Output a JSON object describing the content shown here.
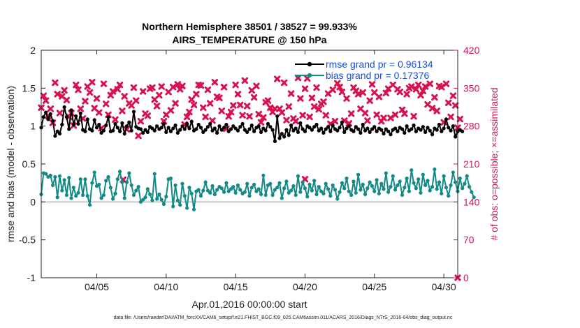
{
  "chart_data": {
    "type": "line",
    "title": "Northern Hemisphere 38501 / 38527 = 99.933%",
    "subtitle": "AIRS_TEMPERATURE @ 150 hPa",
    "xlabel": "Apr.01,2016 00:00:00 start",
    "ylabel": "rmse and bias (model - observation)",
    "y2label": "# of obs: o=possible; ×=assimilated",
    "footer": "data file: /Users/raeder/DAI/ATM_forcXX/CAM6_setup/f.e21.FHIST_BGC.f09_025.CAM6assim.011/ACARS_2016/Diags_NTrS_2016-04/obs_diag_output.nc",
    "xlim": [
      1,
      31
    ],
    "ylim": [
      -1,
      2
    ],
    "y2lim": [
      0,
      420
    ],
    "x_ticks": [
      5,
      10,
      15,
      20,
      25,
      30
    ],
    "x_tick_labels": [
      "04/05",
      "04/10",
      "04/15",
      "04/20",
      "04/25",
      "04/30"
    ],
    "y_tick_labels": [
      "2",
      "1.5",
      "1",
      "0.5",
      "0",
      "-0.5",
      "-1"
    ],
    "y2_tick_labels": [
      "420",
      "350",
      "280",
      "210",
      "140",
      "70",
      "0"
    ],
    "legend": [
      "rmse grand pr = 0.96134",
      "bias grand pr = 0.17376"
    ],
    "colors": {
      "rmse": "#000000",
      "bias": "#128b87",
      "obs": "#d6124f",
      "zero": "#b4b4b4"
    },
    "series": [
      {
        "name": "rmse",
        "values": [
          0.98,
          1.12,
          1.18,
          1.09,
          1.16,
          1.07,
          0.87,
          0.93,
          0.9,
          1.02,
          1.25,
          1.12,
          0.96,
          1.21,
          1.02,
          1.13,
          1.03,
          1.17,
          0.95,
          0.93,
          1.09,
          0.96,
          0.94,
          1.08,
          0.98,
          1.02,
          0.91,
          0.94,
          1.01,
          1.12,
          0.93,
          0.94,
          1.03,
          0.98,
          0.93,
          1.04,
          0.9,
          1.0,
          1.05,
          0.94,
          1.19,
          0.99,
          0.97,
          0.96,
          0.91,
          0.95,
          0.92,
          0.99,
          0.97,
          0.94,
          1.0,
          0.96,
          0.98,
          1.03,
          0.92,
          0.98,
          0.93,
          0.97,
          1.01,
          0.91,
          0.95,
          1.0,
          0.96,
          1.03,
          0.97,
          1.06,
          0.94,
          0.96,
          1.02,
          0.98,
          0.92,
          0.95,
          0.99,
          1.03,
          0.94,
          0.97,
          0.91,
          1.0,
          0.95,
          0.98,
          1.02,
          0.93,
          0.96,
          1.0,
          0.97,
          0.94,
          0.99,
          1.03,
          0.95,
          0.92,
          0.96,
          1.01,
          0.93,
          0.98,
          1.0,
          0.92,
          0.97,
          0.94,
          1.03,
          0.99,
          0.95,
          0.8,
          1.13,
          0.84,
          0.9,
          0.86,
          0.95,
          0.88,
          1.01,
          0.94,
          0.97,
          0.92,
          1.04,
          0.96,
          0.93,
          1.0,
          0.98,
          0.95,
          0.99,
          1.02,
          0.94,
          0.97,
          0.91,
          0.96,
          0.99,
          0.93,
          1.01,
          0.96,
          0.94,
          0.98,
          1.05,
          0.92,
          0.97,
          1.0,
          0.95,
          0.93,
          0.99,
          0.96,
          0.91,
          1.02,
          0.94,
          0.97,
          0.92,
          0.96,
          0.99,
          0.93,
          0.97,
          0.95,
          0.9,
          0.96,
          0.93,
          0.89,
          0.95,
          0.97,
          0.93,
          0.98,
          0.96,
          0.91,
          1.0,
          0.94,
          0.96,
          1.01,
          0.93,
          0.97,
          0.95,
          0.99,
          0.92,
          0.98,
          0.94,
          0.89,
          0.97,
          0.95,
          1.02,
          0.93,
          0.97,
          1.09,
          0.98,
          0.94,
          1.0,
          0.86,
          0.93,
          0.95,
          0.93
        ],
        "x_start": 1.0,
        "x_step": 0.1666667
      },
      {
        "name": "bias",
        "values": [
          0.1,
          0.38,
          0.37,
          0.33,
          0.35,
          0.22,
          0.33,
          0.06,
          0.34,
          0.15,
          0.29,
          0.09,
          0.32,
          0.05,
          0.19,
          0.08,
          0.12,
          0.3,
          0.09,
          0.3,
          0.08,
          -0.04,
          0.25,
          0.39,
          0.21,
          0.23,
          0.05,
          0.09,
          0.28,
          0.33,
          0.19,
          0.04,
          0.11,
          0.3,
          0.4,
          0.26,
          0.05,
          0.26,
          0.38,
          0.22,
          0.09,
          0.15,
          0.2,
          0.0,
          0.03,
          0.06,
          0.17,
          0.1,
          0.02,
          0.37,
          0.04,
          0.1,
          0.03,
          -0.03,
          0.07,
          0.3,
          0.31,
          -0.06,
          0.22,
          0.02,
          -0.04,
          0.24,
          0.08,
          -0.08,
          0.19,
          0.11,
          -0.1,
          0.14,
          0.16,
          0.08,
          0.15,
          0.26,
          0.15,
          0.12,
          0.21,
          0.1,
          0.16,
          0.2,
          0.18,
          0.13,
          0.25,
          0.14,
          0.17,
          0.2,
          0.12,
          0.22,
          0.16,
          0.11,
          0.13,
          0.24,
          0.08,
          0.19,
          0.23,
          0.14,
          0.17,
          0.1,
          0.35,
          0.09,
          0.22,
          0.24,
          0.09,
          0.16,
          0.19,
          0.25,
          0.05,
          0.18,
          0.27,
          0.12,
          0.15,
          0.21,
          0.09,
          0.34,
          0.13,
          0.26,
          0.18,
          0.07,
          0.23,
          0.15,
          0.28,
          0.1,
          0.2,
          0.14,
          0.11,
          0.24,
          0.17,
          0.08,
          0.22,
          0.16,
          0.04,
          0.13,
          0.25,
          0.18,
          0.31,
          0.14,
          0.09,
          0.27,
          0.12,
          0.36,
          0.16,
          0.23,
          0.1,
          0.18,
          0.26,
          0.21,
          0.14,
          0.29,
          0.11,
          0.24,
          0.17,
          0.38,
          0.13,
          0.2,
          0.34,
          0.16,
          0.22,
          0.27,
          0.09,
          0.19,
          0.31,
          0.14,
          0.42,
          0.25,
          0.18,
          0.3,
          0.12,
          0.36,
          0.22,
          0.28,
          0.15,
          0.2,
          0.43,
          0.17,
          0.26,
          0.11,
          0.34,
          0.19,
          0.08,
          0.22,
          0.39,
          0.26,
          0.14,
          0.31,
          0.18,
          0.24,
          0.34,
          0.2,
          0.13,
          0.06
        ],
        "x_start": 1.0,
        "x_step": 0.1666667
      },
      {
        "name": "obs_assimilated",
        "values": [
          314,
          336,
          327,
          299,
          312,
          286,
          360,
          339,
          304,
          335,
          346,
          328,
          297,
          304,
          281,
          356,
          347,
          312,
          294,
          326,
          353,
          342,
          361,
          313,
          331,
          305,
          276,
          358,
          321,
          301,
          337,
          344,
          292,
          348,
          356,
          308,
          335,
          274,
          322,
          318,
          351,
          327,
          262,
          289,
          344,
          303,
          299,
          349,
          351,
          329,
          317,
          337,
          353,
          289,
          301,
          343,
          309,
          352,
          322,
          357,
          348,
          354,
          283,
          297,
          306,
          329,
          319,
          339,
          356,
          355,
          314,
          297,
          347,
          322,
          290,
          361,
          334,
          332,
          308,
          352,
          275,
          298,
          306,
          318,
          356,
          339,
          319,
          300,
          364,
          317,
          298,
          346,
          333,
          354,
          302,
          287,
          296,
          324,
          327,
          314,
          306,
          312,
          367,
          312,
          305,
          360,
          291,
          316,
          340,
          294,
          289,
          369,
          331,
          300,
          349,
          368,
          297,
          332,
          316,
          351,
          311,
          321,
          325,
          300,
          340,
          284,
          347,
          289,
          359,
          352,
          343,
          290,
          331,
          285,
          303,
          351,
          345,
          339,
          312,
          342,
          304,
          290,
          327,
          357,
          342,
          301,
          334,
          289,
          295,
          341,
          349,
          295,
          356,
          301,
          348,
          343,
          310,
          303,
          339,
          350,
          353,
          298,
          348,
          356,
          337,
          345,
          353,
          320,
          358,
          313,
          333,
          308,
          354,
          352,
          287,
          358,
          323,
          297,
          336,
          318,
          277,
          293
        ],
        "x_start": 1.0,
        "x_step": 0.1666667
      },
      {
        "name": "obs_outlier",
        "values": [
          181
        ],
        "x": [
          6.9
        ]
      },
      {
        "name": "obs_outlier2",
        "values": [
          182
        ],
        "x": [
          20.0
        ]
      }
    ]
  }
}
